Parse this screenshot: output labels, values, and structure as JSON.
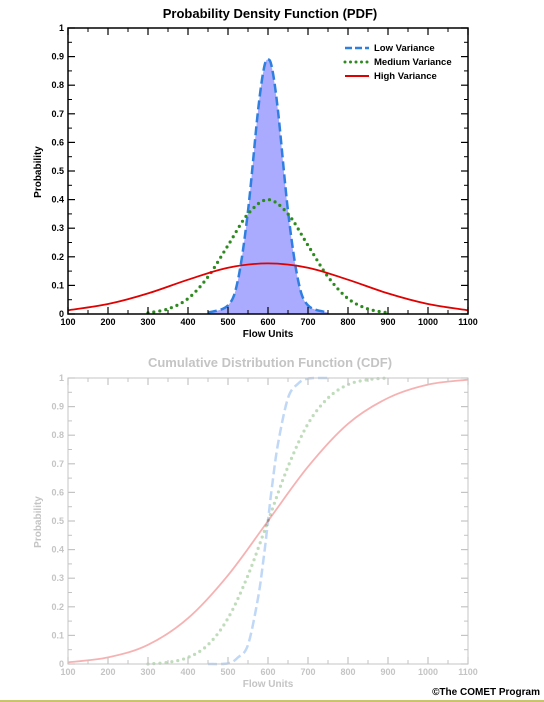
{
  "credit": "©The COMET Program",
  "colors": {
    "low": "#2f7fe0",
    "medium": "#2c8a1e",
    "high": "#e00000",
    "fill": "#aaaaff",
    "axis": "#000000",
    "faded_axis": "#c4c4c4"
  },
  "chart_data": [
    {
      "type": "line",
      "title": "Probability Density Function (PDF)",
      "xlabel": "Flow Units",
      "ylabel": "Probability",
      "xlim": [
        100,
        1100
      ],
      "ylim": [
        0,
        1
      ],
      "x_ticks": [
        "100",
        "200",
        "300",
        "400",
        "500",
        "600",
        "700",
        "800",
        "900",
        "1000",
        "1100"
      ],
      "y_ticks": [
        "0",
        "0.1",
        "0.2",
        "0.3",
        "0.4",
        "0.5",
        "0.6",
        "0.7",
        "0.8",
        "0.9",
        "1"
      ],
      "legend_position": "top-right",
      "shaded_series": "Low Variance",
      "series": [
        {
          "name": "Low Variance",
          "style": "dashed",
          "color": "#2f7fe0",
          "x": [
            450,
            500,
            525,
            550,
            575,
            590,
            600,
            610,
            625,
            650,
            675,
            700,
            750
          ],
          "y": [
            0.005,
            0.03,
            0.12,
            0.36,
            0.71,
            0.86,
            0.89,
            0.86,
            0.71,
            0.36,
            0.12,
            0.03,
            0.005
          ]
        },
        {
          "name": "Medium Variance",
          "style": "dotted",
          "color": "#2c8a1e",
          "x": [
            300,
            350,
            400,
            450,
            500,
            550,
            600,
            650,
            700,
            750,
            800,
            850,
            900
          ],
          "y": [
            0.004,
            0.018,
            0.054,
            0.13,
            0.24,
            0.35,
            0.4,
            0.35,
            0.24,
            0.13,
            0.054,
            0.018,
            0.004
          ]
        },
        {
          "name": "High Variance",
          "style": "solid",
          "color": "#e00000",
          "x": [
            100,
            200,
            300,
            400,
            500,
            600,
            700,
            800,
            900,
            1000,
            1100
          ],
          "y": [
            0.013,
            0.035,
            0.072,
            0.12,
            0.162,
            0.177,
            0.162,
            0.12,
            0.072,
            0.035,
            0.013
          ]
        }
      ]
    },
    {
      "type": "line",
      "title": "Cumulative Distribution Function (CDF)",
      "xlabel": "Flow Units",
      "ylabel": "Probability",
      "xlim": [
        100,
        1100
      ],
      "ylim": [
        0,
        1
      ],
      "x_ticks": [
        "100",
        "200",
        "300",
        "400",
        "500",
        "600",
        "700",
        "800",
        "900",
        "1000",
        "1100"
      ],
      "y_ticks": [
        "0",
        "0.1",
        "0.2",
        "0.3",
        "0.4",
        "0.5",
        "0.6",
        "0.7",
        "0.8",
        "0.9",
        "1"
      ],
      "faded": true,
      "series": [
        {
          "style": "dashed",
          "color": "#2f7fe0",
          "x": [
            450,
            500,
            525,
            550,
            575,
            590,
            600,
            610,
            625,
            650,
            675,
            700,
            750
          ],
          "y": [
            0.0,
            0.002,
            0.023,
            0.067,
            0.23,
            0.38,
            0.5,
            0.62,
            0.77,
            0.93,
            0.98,
            0.998,
            1.0
          ]
        },
        {
          "style": "dotted",
          "color": "#2c8a1e",
          "x": [
            300,
            350,
            400,
            450,
            500,
            550,
            600,
            650,
            700,
            750,
            800,
            850,
            900
          ],
          "y": [
            0.0,
            0.006,
            0.023,
            0.067,
            0.16,
            0.31,
            0.5,
            0.69,
            0.84,
            0.93,
            0.977,
            0.994,
            1.0
          ]
        },
        {
          "style": "solid",
          "color": "#e00000",
          "x": [
            100,
            200,
            300,
            400,
            500,
            600,
            700,
            800,
            900,
            1000,
            1100
          ],
          "y": [
            0.006,
            0.023,
            0.067,
            0.16,
            0.31,
            0.5,
            0.69,
            0.84,
            0.93,
            0.977,
            0.994
          ]
        }
      ]
    }
  ]
}
